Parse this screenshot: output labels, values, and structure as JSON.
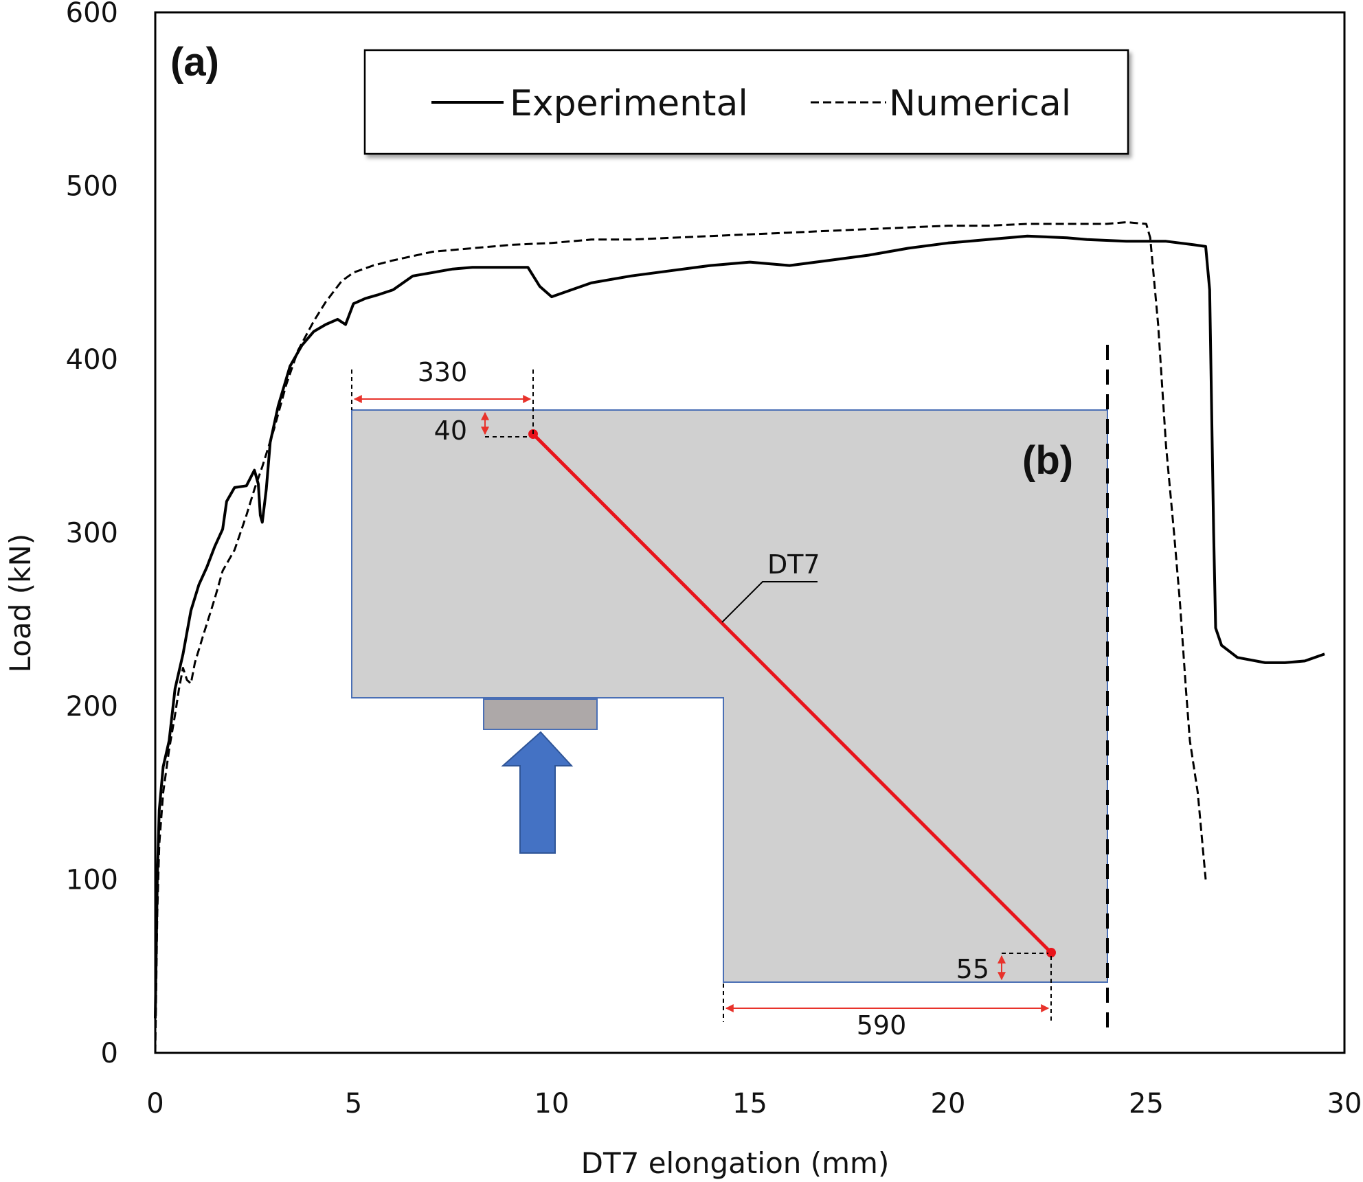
{
  "chart_data": {
    "type": "line",
    "xlabel": "DT7 elongation (mm)",
    "ylabel": "Load  (kN)",
    "xlim": [
      0,
      30
    ],
    "ylim": [
      0,
      600
    ],
    "x_ticks": [
      0,
      5,
      10,
      15,
      20,
      25,
      30
    ],
    "y_ticks": [
      0,
      100,
      200,
      300,
      400,
      500,
      600
    ],
    "grid": false,
    "legend": {
      "placement": "top-center",
      "entries": [
        "Experimental",
        "Numerical"
      ]
    },
    "panel_labels": {
      "a": "(a)",
      "b": "(b)"
    },
    "series": [
      {
        "name": "Experimental",
        "line_style": "solid",
        "color": "#000000",
        "points": [
          [
            0,
            20
          ],
          [
            0.05,
            100
          ],
          [
            0.1,
            140
          ],
          [
            0.2,
            165
          ],
          [
            0.35,
            180
          ],
          [
            0.5,
            210
          ],
          [
            0.7,
            230
          ],
          [
            0.9,
            255
          ],
          [
            1.1,
            270
          ],
          [
            1.3,
            280
          ],
          [
            1.5,
            292
          ],
          [
            1.7,
            302
          ],
          [
            1.8,
            318
          ],
          [
            2.0,
            326
          ],
          [
            2.3,
            327
          ],
          [
            2.5,
            336
          ],
          [
            2.6,
            328
          ],
          [
            2.65,
            310
          ],
          [
            2.7,
            306
          ],
          [
            2.8,
            325
          ],
          [
            2.9,
            352
          ],
          [
            3.1,
            373
          ],
          [
            3.4,
            396
          ],
          [
            3.7,
            408
          ],
          [
            4.0,
            416
          ],
          [
            4.3,
            420
          ],
          [
            4.6,
            423
          ],
          [
            4.8,
            420
          ],
          [
            5.0,
            432
          ],
          [
            5.3,
            435
          ],
          [
            5.6,
            437
          ],
          [
            6.0,
            440
          ],
          [
            6.5,
            448
          ],
          [
            7.0,
            450
          ],
          [
            7.5,
            452
          ],
          [
            8.0,
            453
          ],
          [
            8.5,
            453
          ],
          [
            9.0,
            453
          ],
          [
            9.4,
            453
          ],
          [
            9.7,
            442
          ],
          [
            10.0,
            436
          ],
          [
            10.5,
            440
          ],
          [
            11.0,
            444
          ],
          [
            12.0,
            448
          ],
          [
            13.0,
            451
          ],
          [
            14.0,
            454
          ],
          [
            15.0,
            456
          ],
          [
            15.5,
            455
          ],
          [
            16.0,
            454
          ],
          [
            17.0,
            457
          ],
          [
            18.0,
            460
          ],
          [
            19.0,
            464
          ],
          [
            20.0,
            467
          ],
          [
            21.0,
            469
          ],
          [
            22.0,
            471
          ],
          [
            23.0,
            470
          ],
          [
            23.5,
            469
          ],
          [
            24.5,
            468
          ],
          [
            25.5,
            468
          ],
          [
            26.2,
            466
          ],
          [
            26.5,
            465
          ],
          [
            26.6,
            440
          ],
          [
            26.7,
            300
          ],
          [
            26.75,
            245
          ],
          [
            26.9,
            235
          ],
          [
            27.3,
            228
          ],
          [
            28.0,
            225
          ],
          [
            28.5,
            225
          ],
          [
            29.0,
            226
          ],
          [
            29.5,
            230
          ]
        ]
      },
      {
        "name": "Numerical",
        "line_style": "dashed",
        "color": "#000000",
        "points": [
          [
            0,
            0
          ],
          [
            0.05,
            80
          ],
          [
            0.1,
            120
          ],
          [
            0.2,
            150
          ],
          [
            0.35,
            175
          ],
          [
            0.5,
            195
          ],
          [
            0.6,
            210
          ],
          [
            0.7,
            222
          ],
          [
            0.8,
            215
          ],
          [
            0.9,
            213
          ],
          [
            1.0,
            225
          ],
          [
            1.2,
            240
          ],
          [
            1.5,
            262
          ],
          [
            1.7,
            278
          ],
          [
            2.0,
            290
          ],
          [
            2.3,
            310
          ],
          [
            2.5,
            325
          ],
          [
            2.7,
            338
          ],
          [
            3.0,
            360
          ],
          [
            3.3,
            385
          ],
          [
            3.6,
            405
          ],
          [
            4.0,
            422
          ],
          [
            4.3,
            433
          ],
          [
            4.7,
            445
          ],
          [
            5.0,
            450
          ],
          [
            5.5,
            454
          ],
          [
            6.0,
            457
          ],
          [
            7.0,
            462
          ],
          [
            8.0,
            464
          ],
          [
            9.0,
            466
          ],
          [
            10.0,
            467
          ],
          [
            11.0,
            469
          ],
          [
            12.0,
            469
          ],
          [
            13.0,
            470
          ],
          [
            14.0,
            471
          ],
          [
            15.0,
            472
          ],
          [
            16.0,
            473
          ],
          [
            17.0,
            474
          ],
          [
            18.0,
            475
          ],
          [
            19.0,
            476
          ],
          [
            20.0,
            477
          ],
          [
            21.0,
            477
          ],
          [
            22.0,
            478
          ],
          [
            23.0,
            478
          ],
          [
            24.0,
            478
          ],
          [
            24.5,
            479
          ],
          [
            25.0,
            478
          ],
          [
            25.1,
            470
          ],
          [
            25.3,
            420
          ],
          [
            25.5,
            350
          ],
          [
            25.7,
            300
          ],
          [
            25.85,
            260
          ],
          [
            26.0,
            210
          ],
          [
            26.1,
            180
          ],
          [
            26.3,
            150
          ],
          [
            26.5,
            100
          ]
        ]
      }
    ],
    "inset_diagram": {
      "member_label": "DT7",
      "dimensions": [
        "330",
        "40",
        "55",
        "590"
      ]
    }
  }
}
